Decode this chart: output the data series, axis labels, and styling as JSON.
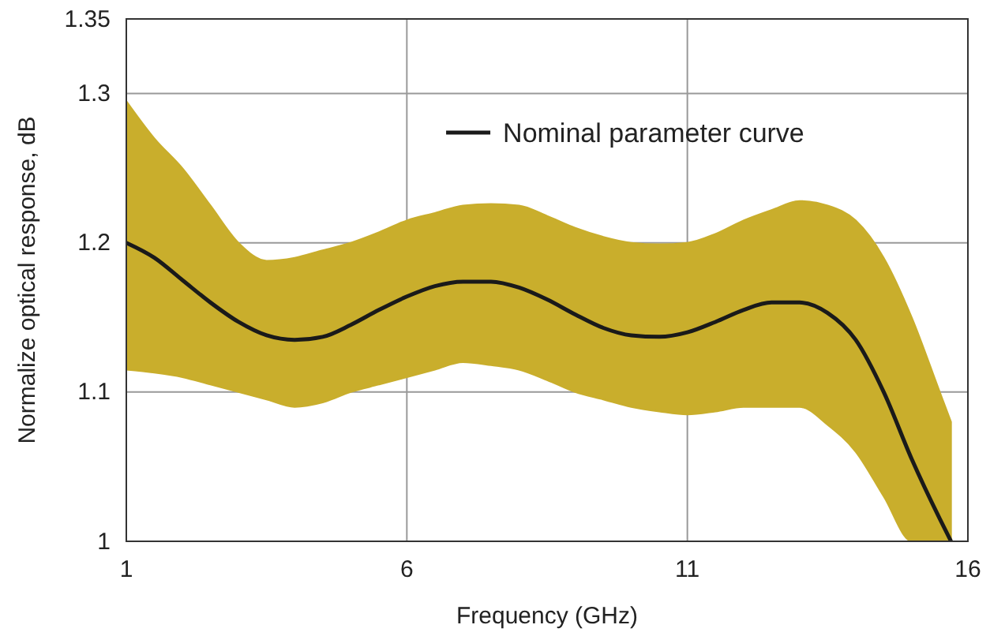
{
  "chart_data": {
    "type": "line",
    "xlabel": "Frequency (GHz)",
    "ylabel": "Normalize optical response, dB",
    "x": [
      1,
      1.5,
      2,
      2.5,
      3,
      3.5,
      4,
      4.5,
      5,
      5.5,
      6,
      6.5,
      7,
      7.5,
      8,
      8.5,
      9,
      9.5,
      10,
      10.5,
      11,
      11.5,
      12,
      12.5,
      13,
      13.5,
      14,
      14.5,
      15,
      15.5,
      15.7
    ],
    "series": [
      {
        "name": "Nominal parameter curve",
        "color": "#1a1a1a",
        "values": [
          1.2,
          1.19,
          1.175,
          1.16,
          1.147,
          1.138,
          1.135,
          1.137,
          1.145,
          1.155,
          1.164,
          1.171,
          1.174,
          1.174,
          1.17,
          1.162,
          1.152,
          1.143,
          1.138,
          1.137,
          1.14,
          1.147,
          1.155,
          1.16,
          1.16,
          1.153,
          1.135,
          1.1,
          1.055,
          1.015,
          1.0
        ],
        "upper": [
          1.295,
          1.27,
          1.25,
          1.225,
          1.2,
          1.188,
          1.19,
          1.195,
          1.2,
          1.207,
          1.215,
          1.22,
          1.225,
          1.226,
          1.225,
          1.218,
          1.21,
          1.204,
          1.2,
          1.199,
          1.2,
          1.206,
          1.215,
          1.222,
          1.228,
          1.225,
          1.215,
          1.19,
          1.15,
          1.1,
          1.08
        ],
        "lower": [
          1.115,
          1.113,
          1.11,
          1.105,
          1.1,
          1.095,
          1.09,
          1.093,
          1.1,
          1.105,
          1.11,
          1.115,
          1.12,
          1.118,
          1.115,
          1.108,
          1.1,
          1.095,
          1.09,
          1.087,
          1.085,
          1.087,
          1.09,
          1.09,
          1.09,
          1.078,
          1.06,
          1.03,
          1.0,
          1.0,
          1.0
        ]
      }
    ],
    "xlim": [
      1,
      16
    ],
    "xticks": [
      1,
      6,
      11,
      16
    ],
    "ylim": [
      1,
      1.35
    ],
    "yticks": [
      1,
      1.1,
      1.2,
      1.3,
      1.35
    ],
    "grid": true,
    "legend": "top right",
    "line_style": "solid",
    "marker": "none"
  }
}
